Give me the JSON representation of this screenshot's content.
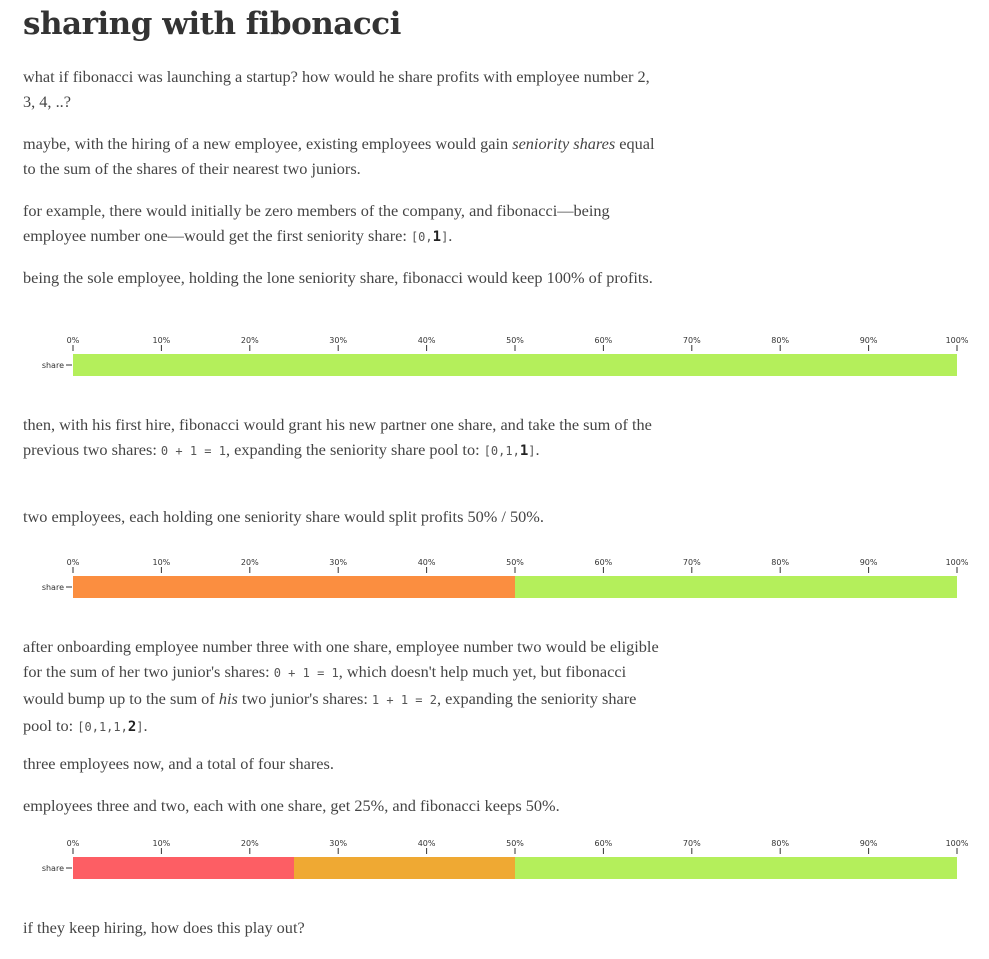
{
  "title": "sharing with fibonacci",
  "intro": {
    "p1": "what if fibonacci was launching a startup? how would he share profits with employee number 2, 3, 4, ..?",
    "p2_a": "maybe, with the hiring of a new employee, existing employees would gain ",
    "p2_em": "seniority shares",
    "p2_b": " equal to the sum of the shares of their nearest two juniors.",
    "p3_a": "for example, there would initially be zero members of the company, and fibonacci—being employee number one—would get the first seniority share: ",
    "p3_code_a": "[0,",
    "p3_code_b": "1",
    "p3_code_c": "]",
    "p3_end": ".",
    "p4": "being the sole employee, holding the lone seniority share, fibonacci would keep 100% of profits."
  },
  "step2": {
    "p1_a": "then, with his first hire, fibonacci would grant his new partner one share, and take the sum of the previous two shares: ",
    "p1_code1": "0 + 1 = 1",
    "p1_b": ", expanding the seniority share pool to: ",
    "p1_code2a": "[0,1,",
    "p1_code2b": "1",
    "p1_code2c": "]",
    "p1_end": ".",
    "p2": "two employees, each holding one seniority share would split profits 50% / 50%."
  },
  "step3": {
    "p1_a": "after onboarding employee number three with one share, employee number two would be eligible for the sum of her two junior's shares: ",
    "p1_code1": "0 + 1 = 1",
    "p1_b": ", which doesn't help much yet, but fibonacci would bump up to the sum of ",
    "p1_em": "his",
    "p1_c": " two junior's shares: ",
    "p1_code2": "1 + 1 = 2",
    "p1_d": ", expanding the seniority share pool to: ",
    "p1_code3a": "[0,1,1,",
    "p1_code3b": "2",
    "p1_code3c": "]",
    "p1_end": ".",
    "p2": "three employees now, and a total of four shares.",
    "p3": "employees three and two, each with one share, get 25%, and fibonacci keeps 50%."
  },
  "outro": "if they keep hiring, how does this play out?",
  "chart_data": [
    {
      "type": "bar",
      "orientation": "horizontal-stacked",
      "categories": [
        "share"
      ],
      "x_ticks": [
        "0%",
        "10%",
        "20%",
        "30%",
        "40%",
        "50%",
        "60%",
        "70%",
        "80%",
        "90%",
        "100%"
      ],
      "xlim": [
        0,
        100
      ],
      "segments": [
        {
          "value": 100,
          "color": "#b4ef5b"
        }
      ]
    },
    {
      "type": "bar",
      "orientation": "horizontal-stacked",
      "categories": [
        "share"
      ],
      "x_ticks": [
        "0%",
        "10%",
        "20%",
        "30%",
        "40%",
        "50%",
        "60%",
        "70%",
        "80%",
        "90%",
        "100%"
      ],
      "xlim": [
        0,
        100
      ],
      "segments": [
        {
          "value": 50,
          "color": "#fb8e40"
        },
        {
          "value": 50,
          "color": "#b4ef5b"
        }
      ]
    },
    {
      "type": "bar",
      "orientation": "horizontal-stacked",
      "categories": [
        "share"
      ],
      "x_ticks": [
        "0%",
        "10%",
        "20%",
        "30%",
        "40%",
        "50%",
        "60%",
        "70%",
        "80%",
        "90%",
        "100%"
      ],
      "xlim": [
        0,
        100
      ],
      "segments": [
        {
          "value": 25,
          "color": "#fd5e64"
        },
        {
          "value": 25,
          "color": "#efa933"
        },
        {
          "value": 50,
          "color": "#b4ef5b"
        }
      ]
    }
  ]
}
